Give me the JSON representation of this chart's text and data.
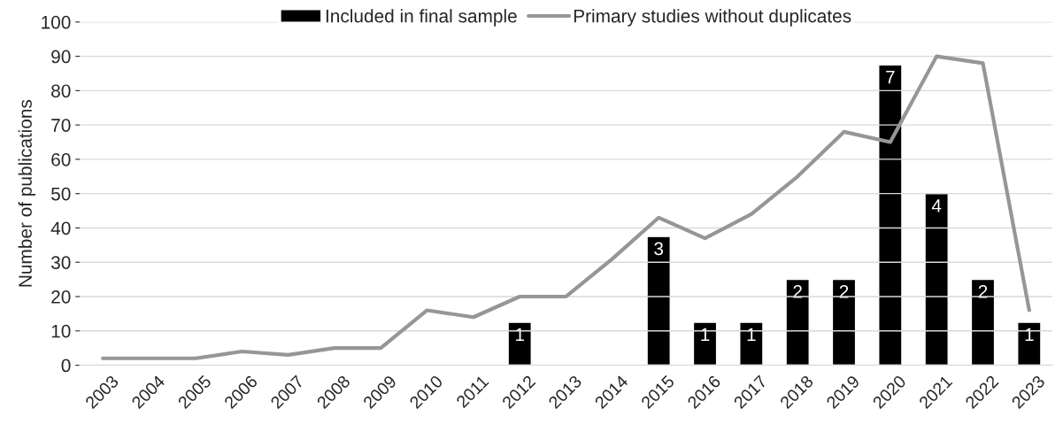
{
  "chart_data": {
    "type": "line",
    "ylabel": "Number of publications",
    "categories": [
      "2003",
      "2004",
      "2005",
      "2006",
      "2007",
      "2008",
      "2009",
      "2010",
      "2011",
      "2012",
      "2013",
      "2014",
      "2015",
      "2016",
      "2017",
      "2018",
      "2019",
      "2020",
      "2021",
      "2022",
      "2023"
    ],
    "series": [
      {
        "name": "Included in final sample",
        "type": "bar",
        "axis": "y2",
        "color": "#000000",
        "values": [
          null,
          null,
          null,
          null,
          null,
          null,
          null,
          null,
          null,
          1,
          null,
          null,
          3,
          1,
          1,
          2,
          2,
          7,
          4,
          2,
          1
        ],
        "value_labels": [
          null,
          null,
          null,
          null,
          null,
          null,
          null,
          null,
          null,
          "1",
          null,
          null,
          "3",
          "1",
          "1",
          "2",
          "2",
          "7",
          "4",
          "2",
          "1"
        ]
      },
      {
        "name": "Primary studies without duplicates",
        "color": "#969696",
        "values": [
          2,
          2,
          2,
          4,
          3,
          5,
          5,
          16,
          14,
          20,
          20,
          31,
          43,
          37,
          44,
          55,
          68,
          65,
          90,
          88,
          16
        ]
      }
    ],
    "ylim": [
      0,
      100
    ],
    "yticks": [
      0,
      10,
      20,
      30,
      40,
      50,
      60,
      70,
      80,
      90,
      100
    ],
    "y2lim": [
      0,
      8
    ],
    "grid": "y",
    "legend": "top",
    "marker": "none",
    "line_style": "solid"
  }
}
